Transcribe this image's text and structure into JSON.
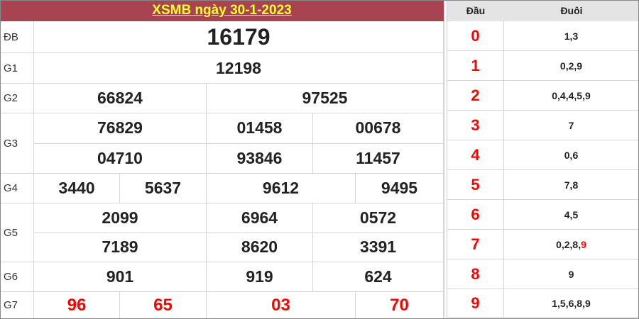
{
  "title": "XSMB ngày 30-1-2023",
  "prizes": [
    {
      "label": "ĐB",
      "numbers": [
        "16179"
      ]
    },
    {
      "label": "G1",
      "numbers": [
        "12198"
      ]
    },
    {
      "label": "G2",
      "numbers": [
        "66824",
        "97525"
      ]
    },
    {
      "label": "G3",
      "numbers": [
        "76829",
        "01458",
        "00678",
        "04710",
        "93846",
        "11457"
      ]
    },
    {
      "label": "G4",
      "numbers": [
        "3440",
        "5637",
        "9612",
        "9495"
      ]
    },
    {
      "label": "G5",
      "numbers": [
        "2099",
        "6964",
        "0572",
        "7189",
        "8620",
        "3391"
      ]
    },
    {
      "label": "G6",
      "numbers": [
        "901",
        "919",
        "624"
      ]
    },
    {
      "label": "G7",
      "numbers": [
        "96",
        "65",
        "03",
        "70"
      ]
    }
  ],
  "loto": {
    "header_dau": "Đầu",
    "header_duoi": "Đuôi",
    "rows": [
      {
        "dau": "0",
        "duoi": "1,3",
        "duoi_highlight": ""
      },
      {
        "dau": "1",
        "duoi": "0,2,9",
        "duoi_highlight": ""
      },
      {
        "dau": "2",
        "duoi": "0,4,4,5,9",
        "duoi_highlight": ""
      },
      {
        "dau": "3",
        "duoi": "7",
        "duoi_highlight": ""
      },
      {
        "dau": "4",
        "duoi": "0,6",
        "duoi_highlight": ""
      },
      {
        "dau": "5",
        "duoi": "7,8",
        "duoi_highlight": ""
      },
      {
        "dau": "6",
        "duoi": "4,5",
        "duoi_highlight": ""
      },
      {
        "dau": "7",
        "duoi": "0,2,8,",
        "duoi_highlight": "9"
      },
      {
        "dau": "8",
        "duoi": "9",
        "duoi_highlight": ""
      },
      {
        "dau": "9",
        "duoi": "1,5,6,8,9",
        "duoi_highlight": ""
      }
    ]
  },
  "colors": {
    "title_bg": "#a84452",
    "title_text": "#ffff33",
    "highlight": "#ff0000"
  }
}
